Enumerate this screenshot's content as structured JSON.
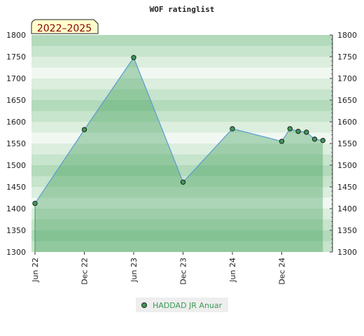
{
  "chart_data": {
    "type": "area",
    "title": "WOF ratinglist",
    "period_label": "2022–2025",
    "xlabel": "",
    "ylabel": "",
    "ylim": [
      1300,
      1800
    ],
    "y_ticks": [
      1300,
      1350,
      1400,
      1450,
      1500,
      1550,
      1600,
      1650,
      1700,
      1750,
      1800
    ],
    "x_range": [
      "2022-06",
      "2025-06"
    ],
    "x_ticks": [
      {
        "date": "2022-06",
        "label": "Jun 22"
      },
      {
        "date": "2022-12",
        "label": "Dec 22"
      },
      {
        "date": "2023-06",
        "label": "Jun 23"
      },
      {
        "date": "2023-12",
        "label": "Dec 23"
      },
      {
        "date": "2024-06",
        "label": "Jun 24"
      },
      {
        "date": "2024-12",
        "label": "Dec 24"
      }
    ],
    "series": [
      {
        "name": "HADDAD JR Anuar",
        "color": "#3a9a55",
        "line_color": "#5b9bd5",
        "points": [
          {
            "x": "2022-06",
            "y": 1412
          },
          {
            "x": "2022-12",
            "y": 1582
          },
          {
            "x": "2023-06",
            "y": 1748
          },
          {
            "x": "2023-12",
            "y": 1461
          },
          {
            "x": "2024-06",
            "y": 1584
          },
          {
            "x": "2024-12",
            "y": 1555
          },
          {
            "x": "2025-01",
            "y": 1584
          },
          {
            "x": "2025-02",
            "y": 1578
          },
          {
            "x": "2025-03",
            "y": 1576
          },
          {
            "x": "2025-04",
            "y": 1560
          },
          {
            "x": "2025-05",
            "y": 1557
          }
        ]
      }
    ],
    "grid": true,
    "legend_position": "bottom-center",
    "band_colors": [
      "#f1f8f2",
      "#dceede",
      "#c7e4cc",
      "#b2dabb"
    ]
  }
}
